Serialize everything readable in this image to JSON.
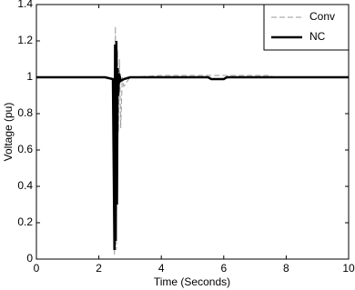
{
  "chart_data": {
    "type": "line",
    "xlabel": "Time (Seconds)",
    "ylabel": "Voltage (pu)",
    "xlim": [
      0,
      10
    ],
    "xticks": [
      0,
      2,
      4,
      6,
      8,
      10
    ],
    "ylim": [
      0,
      1.4
    ],
    "yticks": [
      0,
      0.2,
      0.4,
      0.6,
      0.8,
      1,
      1.2,
      1.4
    ],
    "grid": false,
    "legend": "upper right",
    "series": [
      {
        "name": "Conv",
        "color": "#999999",
        "style": "dashed",
        "width": 1,
        "x": [
          0,
          2.2,
          2.45,
          2.5,
          2.53,
          2.56,
          2.6,
          2.63,
          2.66,
          2.7,
          2.75,
          2.8,
          3.0,
          4.0,
          6.0,
          7.5,
          7.6,
          10
        ],
        "values": [
          1,
          1,
          0.99,
          0.02,
          1.28,
          0.05,
          1.15,
          0.7,
          1.1,
          0.72,
          1.0,
          0.95,
          1.0,
          1.01,
          1.01,
          1.01,
          1.0,
          1.0
        ]
      },
      {
        "name": "NC",
        "color": "#000000",
        "style": "solid",
        "width": 2.5,
        "x": [
          0,
          2.2,
          2.45,
          2.5,
          2.52,
          2.54,
          2.56,
          2.58,
          2.6,
          2.62,
          2.65,
          2.7,
          2.8,
          3.0,
          5.5,
          5.6,
          6.0,
          6.1,
          10
        ],
        "values": [
          1,
          1,
          0.99,
          0.05,
          1.18,
          0.1,
          1.2,
          0.3,
          1.05,
          0.9,
          1.02,
          0.98,
          0.99,
          1.0,
          1.0,
          0.99,
          0.99,
          1.0,
          1.0
        ]
      }
    ]
  }
}
